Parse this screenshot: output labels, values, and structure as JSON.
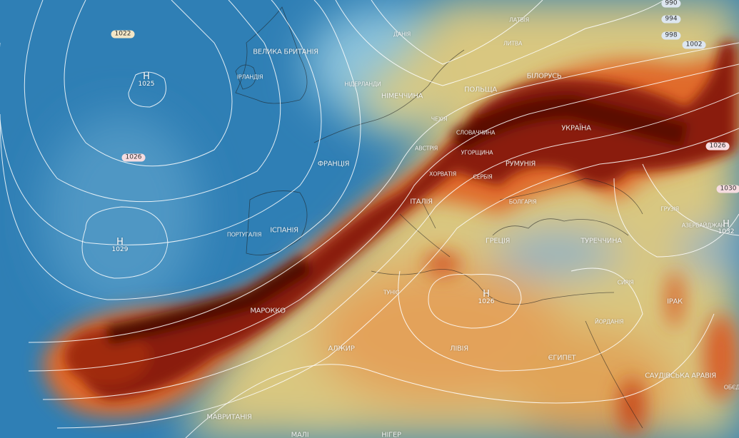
{
  "map": {
    "layer": "dust / aerosol concentration with surface pressure isobars",
    "colors": {
      "ocean_low": "#2f7fb5",
      "light_blue": "#8cc3dc",
      "yellow": "#d9c780",
      "orange": "#e08a3c",
      "red": "#c0401a",
      "dark_red": "#5a0d05"
    },
    "countries": [
      {
        "name": "ВЕЛИКА БРИТАНІЯ"
      },
      {
        "name": "ІРЛАНДІЯ"
      },
      {
        "name": "ДАНІЯ"
      },
      {
        "name": "ЛАТВІЯ"
      },
      {
        "name": "ЛИТВА"
      },
      {
        "name": "НІДЕРЛАНДИ"
      },
      {
        "name": "НІМЕЧЧИНА"
      },
      {
        "name": "ПОЛЬЩА"
      },
      {
        "name": "БІЛОРУСЬ"
      },
      {
        "name": "ЧЕХІЯ"
      },
      {
        "name": "СЛОВАЧЧИНА"
      },
      {
        "name": "АВСТРІЯ"
      },
      {
        "name": "УГОРЩИНА"
      },
      {
        "name": "УКРАЇНА"
      },
      {
        "name": "РУМУНІЯ"
      },
      {
        "name": "ХОРВАТІЯ"
      },
      {
        "name": "СЕРБІЯ"
      },
      {
        "name": "БОЛГАРІЯ"
      },
      {
        "name": "ФРАНЦІЯ"
      },
      {
        "name": "ІСПАНІЯ"
      },
      {
        "name": "ПОРТУГАЛІЯ"
      },
      {
        "name": "ІТАЛІЯ"
      },
      {
        "name": "ГРЕЦІЯ"
      },
      {
        "name": "ТУРЕЧЧИНА"
      },
      {
        "name": "ГРУЗІЯ"
      },
      {
        "name": "АЗЕРБАЙДЖАН"
      },
      {
        "name": "МАРОККО"
      },
      {
        "name": "ТУНІС"
      },
      {
        "name": "АЛЖИР"
      },
      {
        "name": "ЛІВІЯ"
      },
      {
        "name": "ЄГИПЕТ"
      },
      {
        "name": "СИРІЯ"
      },
      {
        "name": "ЙОРДАНІЯ"
      },
      {
        "name": "ІРАК"
      },
      {
        "name": "САУДІВСЬКА АРАВІЯ"
      },
      {
        "name": "ОБЄД"
      },
      {
        "name": "МАВРИТАНІЯ"
      },
      {
        "name": "МАЛІ"
      },
      {
        "name": "НІГЕР"
      }
    ],
    "isobar_labels": [
      "990",
      "994",
      "998",
      "1002",
      "1022",
      "1026",
      "1026",
      "1030"
    ],
    "pressure_centers": [
      {
        "type": "H",
        "value": "1025"
      },
      {
        "type": "H",
        "value": "1029"
      },
      {
        "type": "H",
        "value": "1026"
      },
      {
        "type": "H",
        "value": "1032"
      }
    ]
  }
}
